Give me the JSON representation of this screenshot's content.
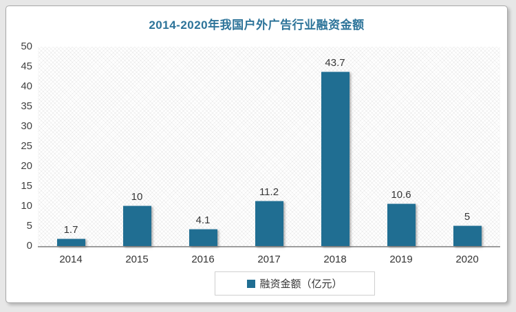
{
  "chart_data": {
    "type": "bar",
    "title": "2014-2020年我国户外广告行业融资金额",
    "categories": [
      "2014",
      "2015",
      "2016",
      "2017",
      "2018",
      "2019",
      "2020"
    ],
    "values": [
      1.7,
      10,
      4.1,
      11.2,
      43.7,
      10.6,
      5
    ],
    "series_name": "融资金额（亿元）",
    "xlabel": "",
    "ylabel": "",
    "ylim": [
      0,
      50
    ],
    "yticks": [
      0,
      5,
      10,
      15,
      20,
      25,
      30,
      35,
      40,
      45,
      50
    ],
    "grid": false,
    "legend_position": "bottom",
    "plot_background": "diagonal-hatch",
    "bar_color": "#206E92",
    "title_color": "#2C7399",
    "axis_line_color": "#9c9c9c"
  },
  "legend": {
    "label": "融资金额（亿元）"
  }
}
